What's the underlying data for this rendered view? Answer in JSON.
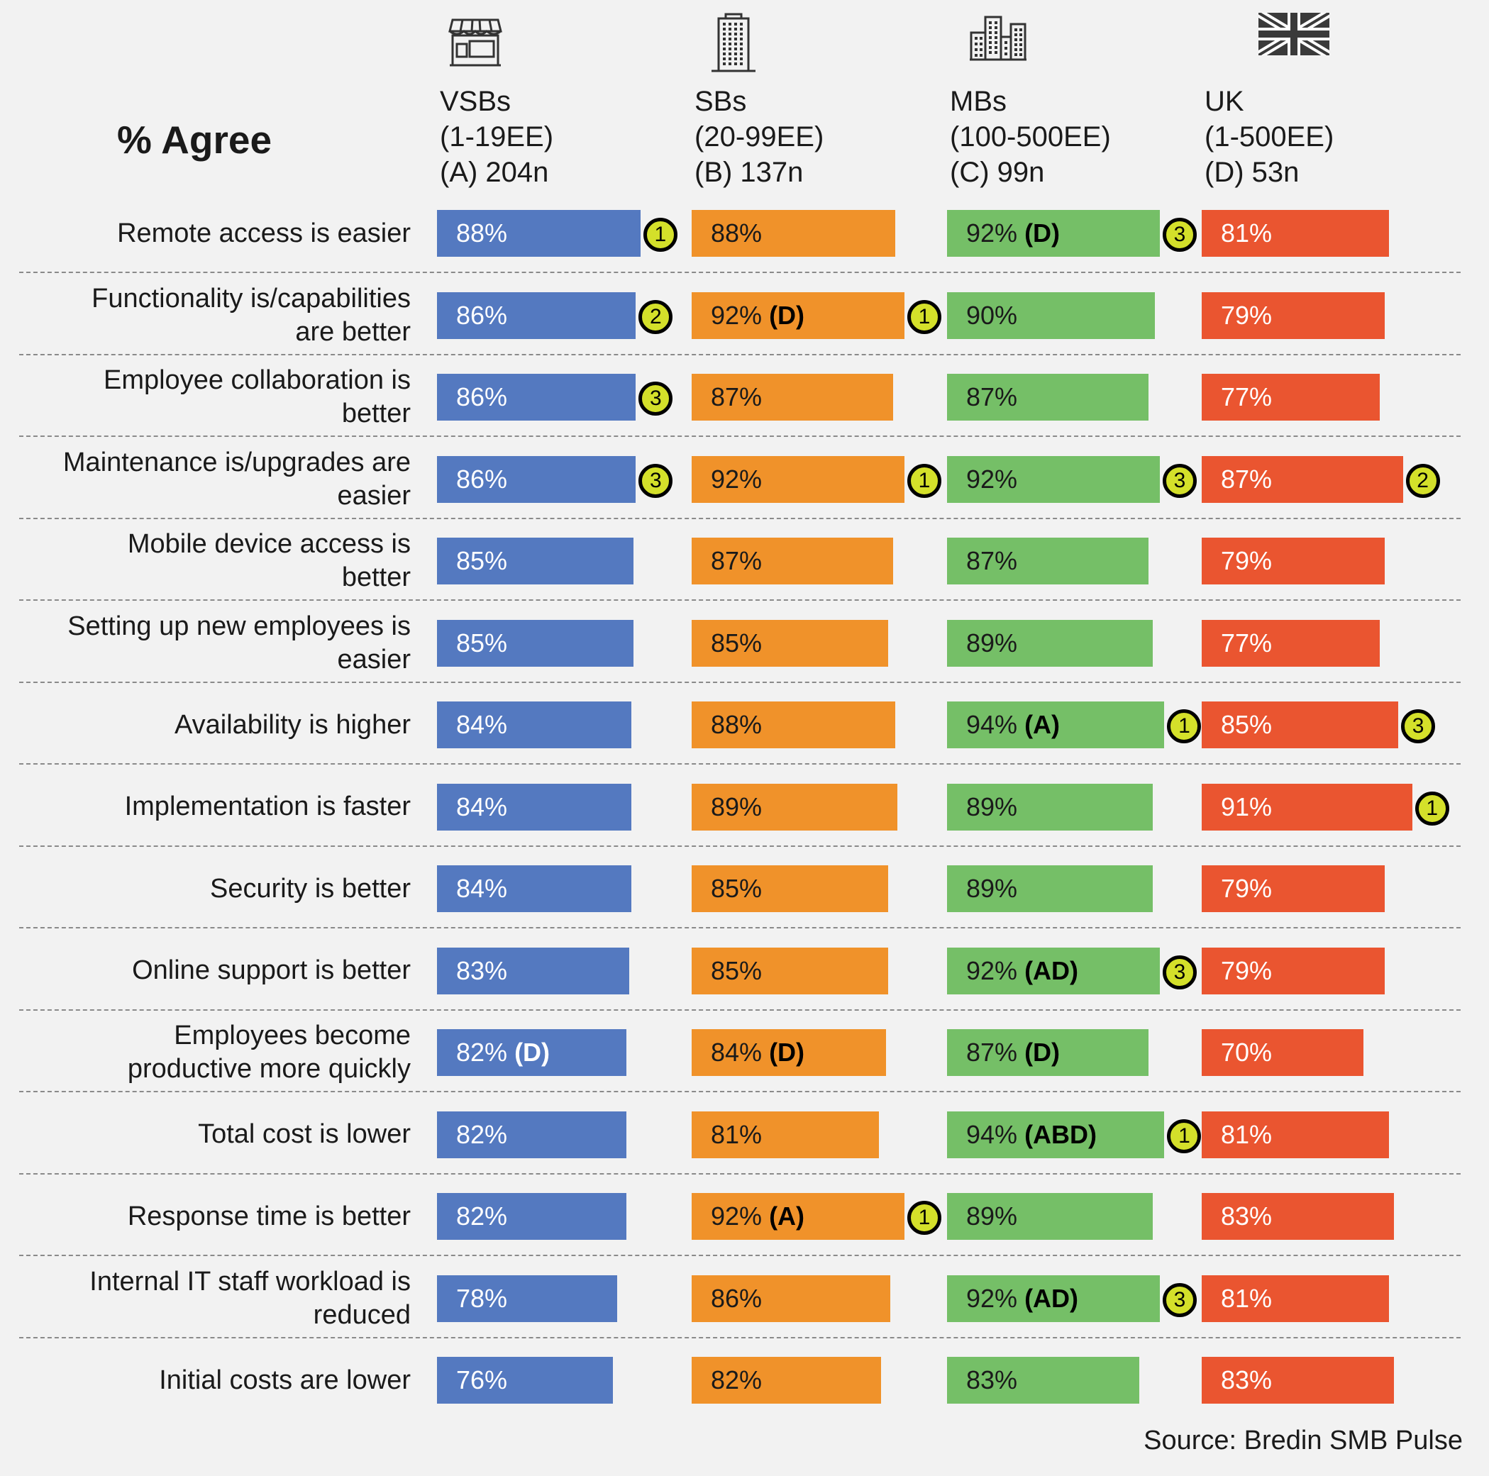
{
  "chart_data": {
    "type": "bar",
    "title": "% Agree",
    "source": "Source: Bredin SMB Pulse",
    "xlim": [
      0,
      100
    ],
    "colors": {
      "A": "#5479c0",
      "B": "#f0922a",
      "C": "#75bf67",
      "D": "#ea5530"
    },
    "segments": [
      {
        "key": "A",
        "icon": "storefront-icon",
        "lines": [
          "VSBs",
          "(1-19EE)",
          "(A) 204n"
        ]
      },
      {
        "key": "B",
        "icon": "office-building-icon",
        "lines": [
          "SBs",
          "(20-99EE)",
          "(B) 137n"
        ]
      },
      {
        "key": "C",
        "icon": "city-buildings-icon",
        "lines": [
          "MBs",
          "(100-500EE)",
          "(C) 99n"
        ]
      },
      {
        "key": "D",
        "icon": "uk-flag-icon",
        "lines": [
          "UK",
          "(1-500EE)",
          "(D) 53n"
        ]
      }
    ],
    "categories": [
      [
        "Remote access is easier"
      ],
      [
        "Functionality is/capabilities",
        "are better"
      ],
      [
        "Employee collaboration is",
        "better"
      ],
      [
        "Maintenance is/upgrades are",
        "easier"
      ],
      [
        "Mobile device access is",
        "better"
      ],
      [
        "Setting up new employees is",
        "easier"
      ],
      [
        "Availability is higher"
      ],
      [
        "Implementation is faster"
      ],
      [
        "Security is better"
      ],
      [
        "Online support is better"
      ],
      [
        "Employees become",
        "productive more quickly"
      ],
      [
        "Total cost is lower"
      ],
      [
        "Response time is better"
      ],
      [
        "Internal IT staff workload is",
        "reduced"
      ],
      [
        "Initial costs are lower"
      ]
    ],
    "series": [
      {
        "key": "A",
        "values": [
          88,
          86,
          86,
          86,
          85,
          85,
          84,
          84,
          84,
          83,
          82,
          82,
          82,
          78,
          76
        ],
        "sig": [
          "",
          "",
          "",
          "",
          "",
          "",
          "",
          "",
          "",
          "",
          "(D)",
          "",
          "",
          "",
          ""
        ],
        "rank": [
          "1",
          "2",
          "3",
          "3",
          "",
          "",
          "",
          "",
          "",
          "",
          "",
          "",
          "",
          "",
          ""
        ]
      },
      {
        "key": "B",
        "values": [
          88,
          92,
          87,
          92,
          87,
          85,
          88,
          89,
          85,
          85,
          84,
          81,
          92,
          86,
          82
        ],
        "sig": [
          "",
          "(D)",
          "",
          "",
          "",
          "",
          "",
          "",
          "",
          "",
          "(D)",
          "",
          "(A)",
          "",
          ""
        ],
        "rank": [
          "",
          "1",
          "",
          "1",
          "",
          "",
          "",
          "",
          "",
          "",
          "",
          "",
          "1",
          "",
          ""
        ]
      },
      {
        "key": "C",
        "values": [
          92,
          90,
          87,
          92,
          87,
          89,
          94,
          89,
          89,
          92,
          87,
          94,
          89,
          92,
          83
        ],
        "sig": [
          "(D)",
          "",
          "",
          "",
          "",
          "",
          "(A)",
          "",
          "",
          "(AD)",
          "(D)",
          "(ABD)",
          "",
          "(AD)",
          ""
        ],
        "rank": [
          "3",
          "",
          "",
          "3",
          "",
          "",
          "1",
          "",
          "",
          "3",
          "",
          "1",
          "",
          "3",
          ""
        ]
      },
      {
        "key": "D",
        "values": [
          81,
          79,
          77,
          87,
          79,
          77,
          85,
          91,
          79,
          79,
          70,
          81,
          83,
          81,
          83
        ],
        "sig": [
          "",
          "",
          "",
          "",
          "",
          "",
          "",
          "",
          "",
          "",
          "",
          "",
          "",
          "",
          ""
        ],
        "rank": [
          "",
          "",
          "",
          "2",
          "",
          "",
          "3",
          "1",
          "",
          "",
          "",
          "",
          "",
          "",
          ""
        ]
      }
    ]
  }
}
